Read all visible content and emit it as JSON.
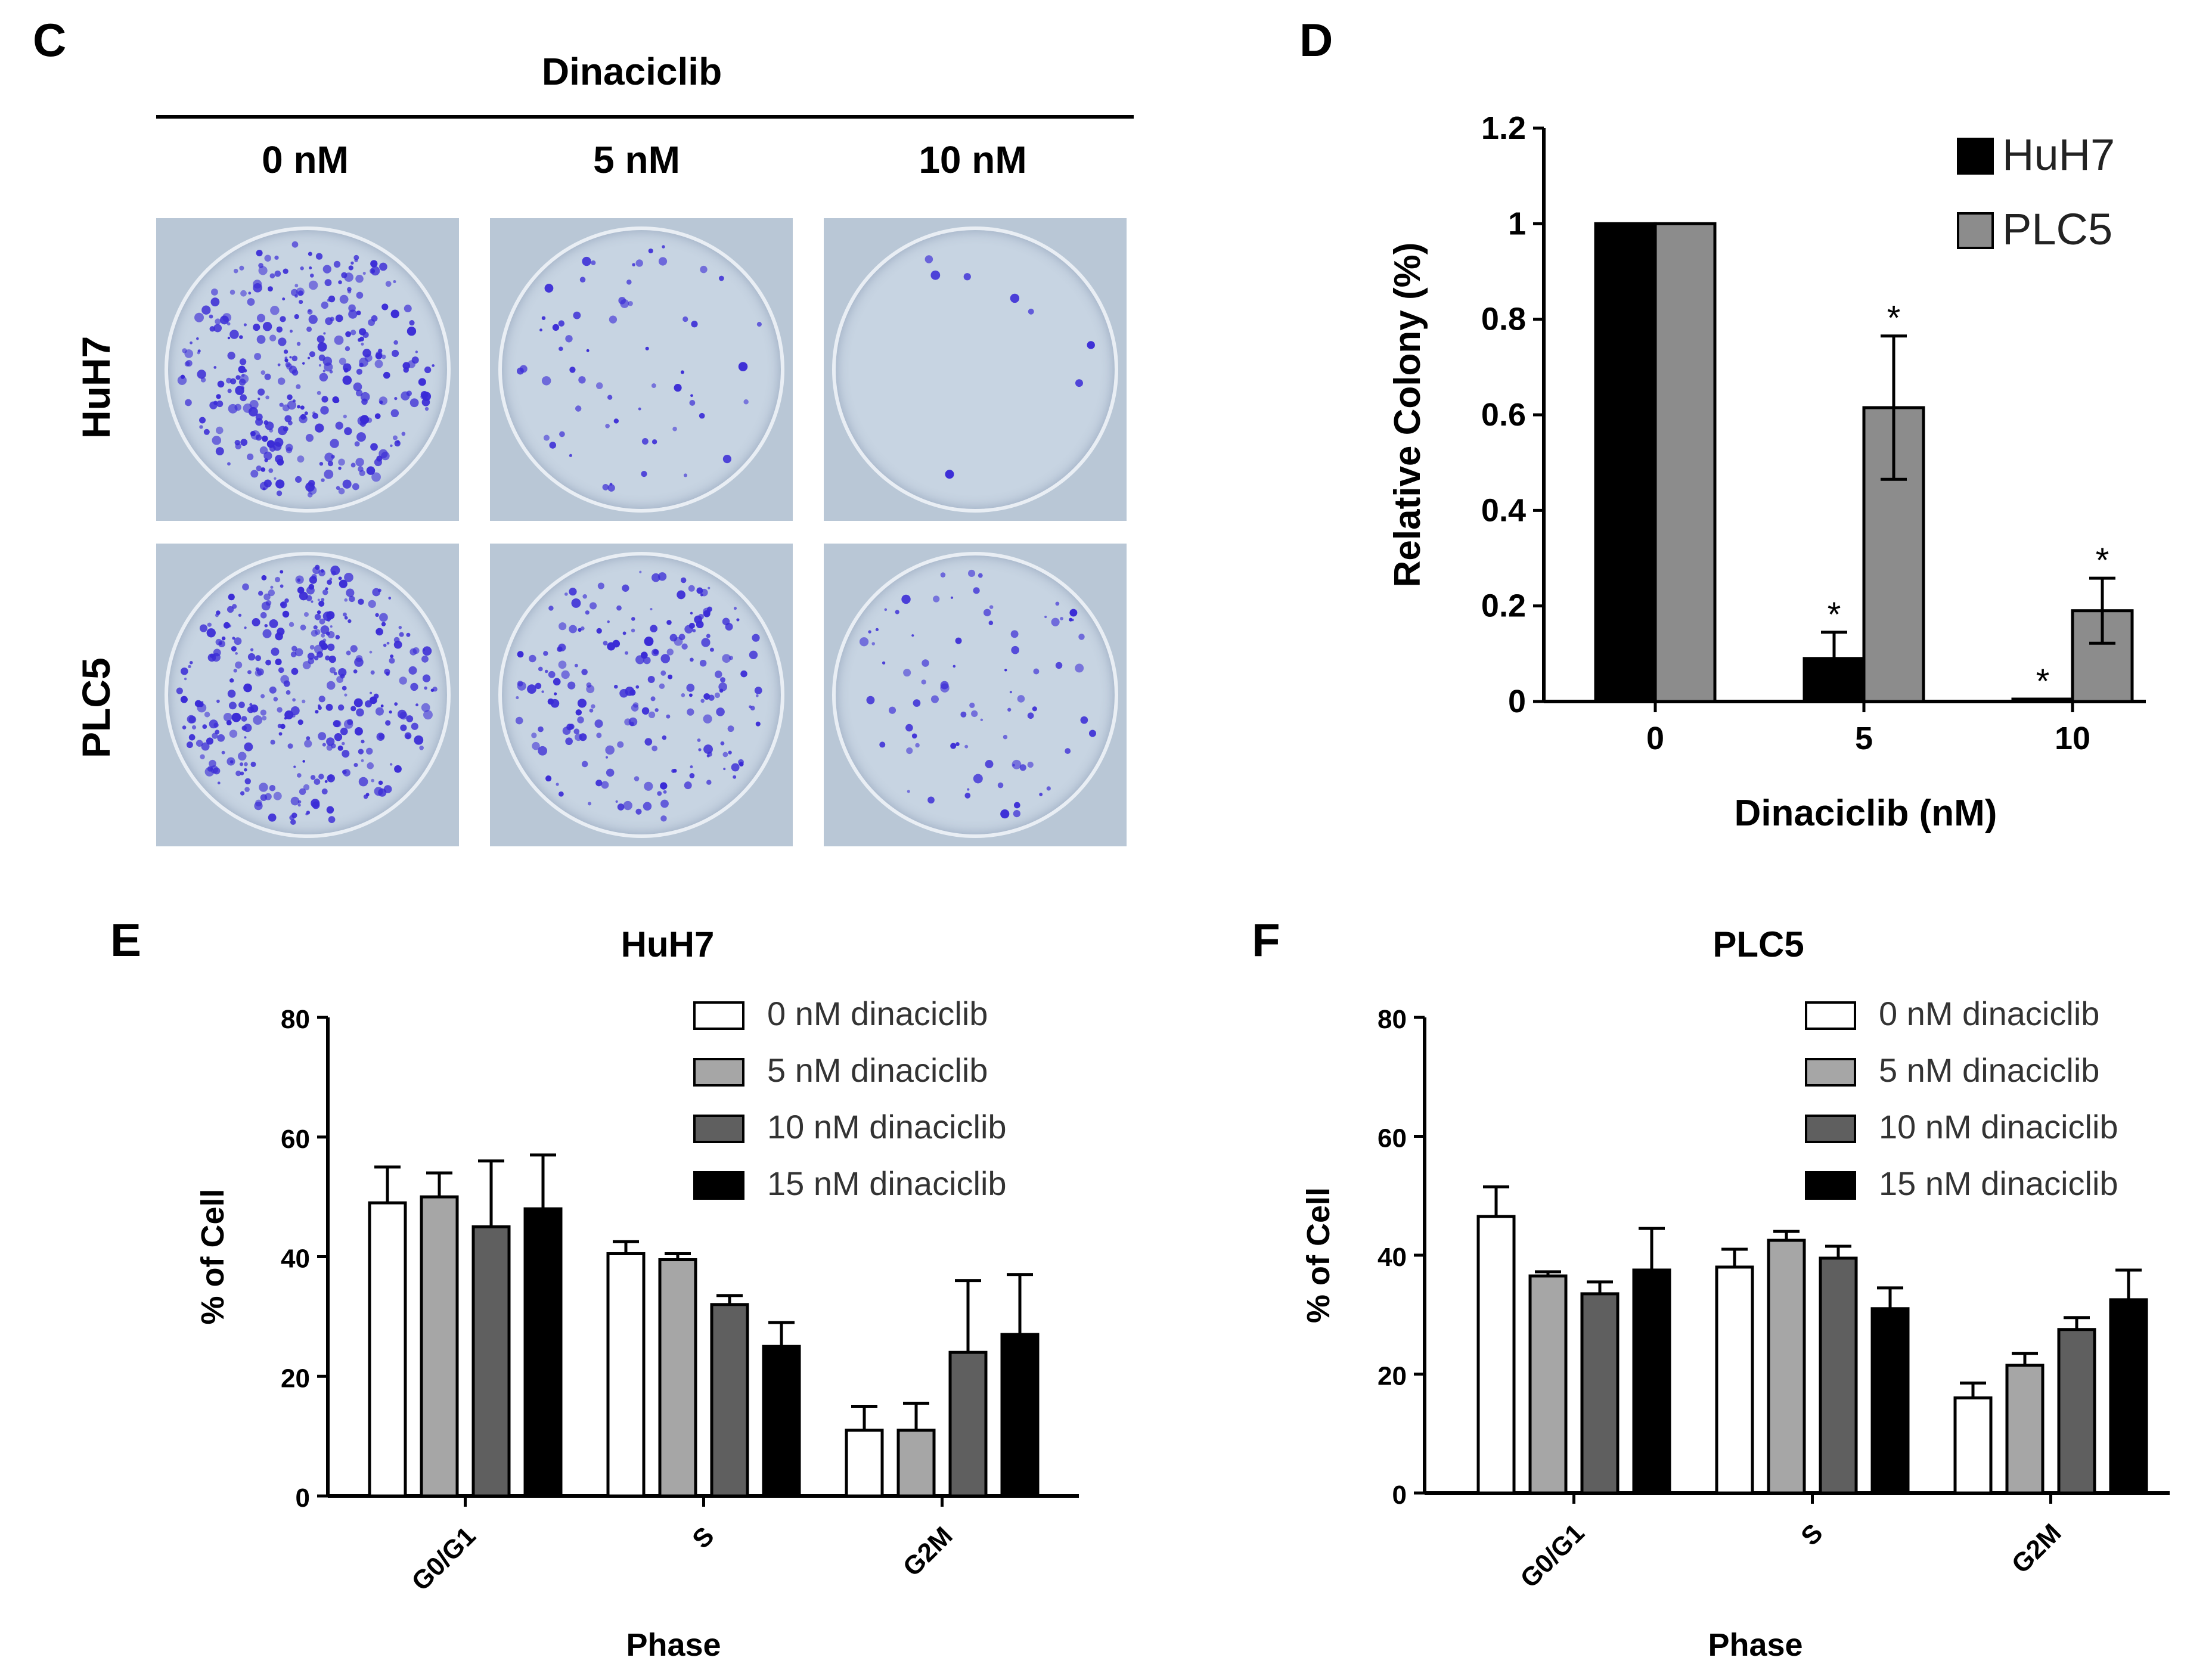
{
  "panel_c": {
    "letter": "C",
    "title": "Dinaciclib",
    "doses": [
      "0 nM",
      "5 nM",
      "10 nM"
    ],
    "rows": [
      "HuH7",
      "PLC5"
    ],
    "colony_color": "#3a2bd6"
  },
  "chart_data": [
    {
      "panel": "D",
      "type": "bar",
      "title": "",
      "xlabel": "Dinaciclib (nM)",
      "ylabel": "Relative Colony (%)",
      "categories": [
        "0",
        "5",
        "10"
      ],
      "ylim": [
        0,
        1.2
      ],
      "yticks": [
        "0",
        "0.2",
        "0.4",
        "0.6",
        "0.8",
        "1",
        "1.2"
      ],
      "series": [
        {
          "name": "HuH7",
          "color": "#000000",
          "values": [
            1.0,
            0.09,
            0.005
          ],
          "errors": [
            0,
            0.055,
            0
          ],
          "sig": [
            "",
            "*",
            "*"
          ]
        },
        {
          "name": "PLC5",
          "color": "#8c8c8c",
          "values": [
            1.0,
            0.615,
            0.19
          ],
          "errors": [
            0,
            0.15,
            0.068
          ],
          "sig": [
            "",
            "*",
            "*"
          ]
        }
      ],
      "legend": "top-right"
    },
    {
      "panel": "E",
      "type": "bar",
      "title": "HuH7",
      "xlabel": "Phase",
      "ylabel": "% of Cell",
      "categories": [
        "G0/G1",
        "S",
        "G2M"
      ],
      "ylim": [
        0,
        80
      ],
      "yticks": [
        "0",
        "20",
        "40",
        "60",
        "80"
      ],
      "series": [
        {
          "name": "0 nM dinaciclib",
          "color": "#ffffff",
          "values": [
            49,
            40.5,
            11
          ],
          "errors": [
            6,
            2,
            4
          ]
        },
        {
          "name": "5 nM dinaciclib",
          "color": "#a6a6a6",
          "values": [
            50,
            39.5,
            11
          ],
          "errors": [
            4,
            1,
            4.5
          ]
        },
        {
          "name": "10 nM dinaciclib",
          "color": "#5f5f5f",
          "values": [
            45,
            32,
            24
          ],
          "errors": [
            11,
            1.5,
            12
          ]
        },
        {
          "name": "15 nM dinaciclib",
          "color": "#000000",
          "values": [
            48,
            25,
            27
          ],
          "errors": [
            9,
            4,
            10
          ]
        }
      ],
      "legend": "top-right"
    },
    {
      "panel": "F",
      "type": "bar",
      "title": "PLC5",
      "xlabel": "Phase",
      "ylabel": "% of Cell",
      "categories": [
        "G0/G1",
        "S",
        "G2M"
      ],
      "ylim": [
        0,
        80
      ],
      "yticks": [
        "0",
        "20",
        "40",
        "60",
        "80"
      ],
      "series": [
        {
          "name": "0 nM dinaciclib",
          "color": "#ffffff",
          "values": [
            46.5,
            38,
            16
          ],
          "errors": [
            5,
            3,
            2.5
          ]
        },
        {
          "name": "5 nM dinaciclib",
          "color": "#a6a6a6",
          "values": [
            36.5,
            42.5,
            21.5
          ],
          "errors": [
            0.7,
            1.5,
            2
          ]
        },
        {
          "name": "10 nM dinaciclib",
          "color": "#5f5f5f",
          "values": [
            33.5,
            39.5,
            27.5
          ],
          "errors": [
            2,
            2,
            2
          ]
        },
        {
          "name": "15 nM dinaciclib",
          "color": "#000000",
          "values": [
            37.5,
            31,
            32.5
          ],
          "errors": [
            7,
            3.5,
            5
          ]
        }
      ],
      "legend": "top-right"
    }
  ]
}
